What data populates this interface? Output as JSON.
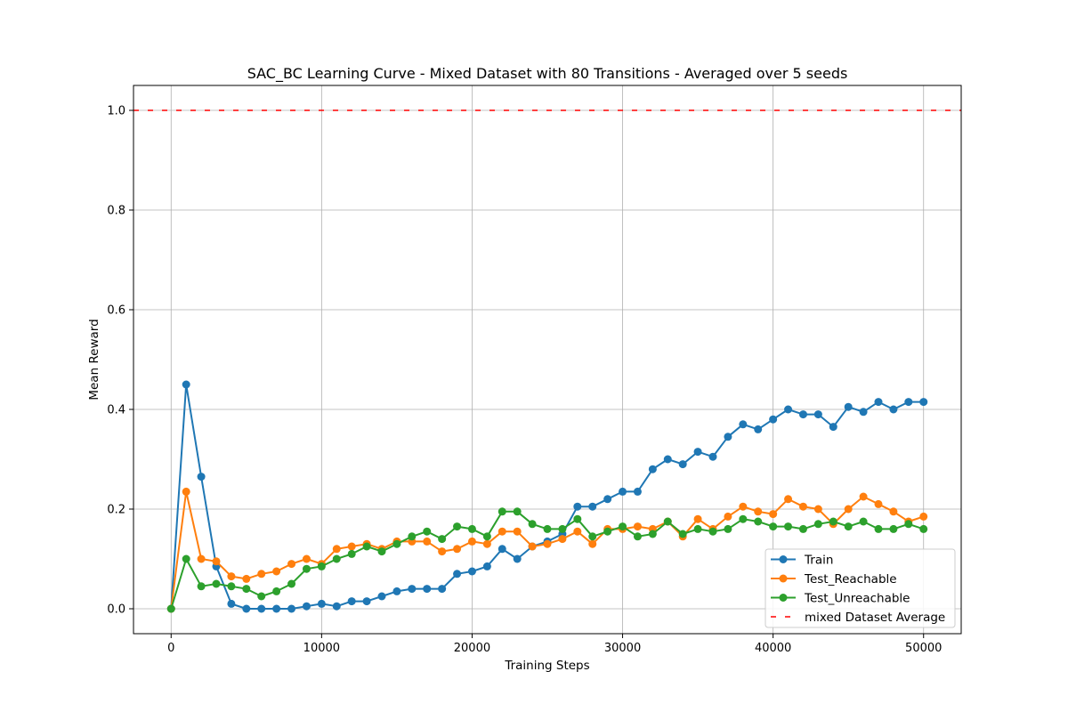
{
  "chart_data": {
    "type": "line",
    "title": "SAC_BC Learning Curve - Mixed Dataset with 80 Transitions - Averaged over 5 seeds",
    "xlabel": "Training Steps",
    "ylabel": "Mean Reward",
    "xlim": [
      -2500,
      52500
    ],
    "ylim": [
      -0.05,
      1.05
    ],
    "xticks": [
      0,
      10000,
      20000,
      30000,
      40000,
      50000
    ],
    "yticks": [
      0.0,
      0.2,
      0.4,
      0.6,
      0.8,
      1.0
    ],
    "grid": true,
    "legend_position": "bottom-right",
    "x": [
      0,
      1000,
      2000,
      3000,
      4000,
      5000,
      6000,
      7000,
      8000,
      9000,
      10000,
      11000,
      12000,
      13000,
      14000,
      15000,
      16000,
      17000,
      18000,
      19000,
      20000,
      21000,
      22000,
      23000,
      24000,
      25000,
      26000,
      27000,
      28000,
      29000,
      30000,
      31000,
      32000,
      33000,
      34000,
      35000,
      36000,
      37000,
      38000,
      39000,
      40000,
      41000,
      42000,
      43000,
      44000,
      45000,
      46000,
      47000,
      48000,
      49000,
      50000
    ],
    "series": [
      {
        "name": "Train",
        "color": "#1f77b4",
        "values": [
          0.0,
          0.45,
          0.265,
          0.085,
          0.01,
          0.0,
          0.0,
          0.0,
          0.0,
          0.005,
          0.01,
          0.005,
          0.015,
          0.015,
          0.025,
          0.035,
          0.04,
          0.04,
          0.04,
          0.07,
          0.075,
          0.085,
          0.12,
          0.1,
          0.125,
          0.135,
          0.15,
          0.205,
          0.205,
          0.22,
          0.235,
          0.235,
          0.28,
          0.3,
          0.29,
          0.315,
          0.305,
          0.345,
          0.37,
          0.36,
          0.38,
          0.4,
          0.39,
          0.39,
          0.365,
          0.405,
          0.395,
          0.415,
          0.4,
          0.415,
          0.415
        ]
      },
      {
        "name": "Test_Reachable",
        "color": "#ff7f0e",
        "values": [
          0.0,
          0.235,
          0.1,
          0.095,
          0.065,
          0.06,
          0.07,
          0.075,
          0.09,
          0.1,
          0.09,
          0.12,
          0.125,
          0.13,
          0.12,
          0.135,
          0.135,
          0.135,
          0.115,
          0.12,
          0.135,
          0.13,
          0.155,
          0.155,
          0.125,
          0.13,
          0.14,
          0.155,
          0.13,
          0.16,
          0.16,
          0.165,
          0.16,
          0.175,
          0.145,
          0.18,
          0.16,
          0.185,
          0.205,
          0.195,
          0.19,
          0.22,
          0.205,
          0.2,
          0.17,
          0.2,
          0.225,
          0.21,
          0.195,
          0.175,
          0.185
        ]
      },
      {
        "name": "Test_Unreachable",
        "color": "#2ca02c",
        "values": [
          0.0,
          0.1,
          0.045,
          0.05,
          0.045,
          0.04,
          0.025,
          0.035,
          0.05,
          0.08,
          0.085,
          0.1,
          0.11,
          0.125,
          0.115,
          0.13,
          0.145,
          0.155,
          0.14,
          0.165,
          0.16,
          0.145,
          0.195,
          0.195,
          0.17,
          0.16,
          0.16,
          0.18,
          0.145,
          0.155,
          0.165,
          0.145,
          0.15,
          0.175,
          0.15,
          0.16,
          0.155,
          0.16,
          0.18,
          0.175,
          0.165,
          0.165,
          0.16,
          0.17,
          0.175,
          0.165,
          0.175,
          0.16,
          0.16,
          0.17,
          0.16
        ]
      }
    ],
    "reference_lines": [
      {
        "name": "mixed Dataset Average",
        "y": 1.0,
        "color": "#ff0000",
        "style": "dashed"
      }
    ]
  }
}
